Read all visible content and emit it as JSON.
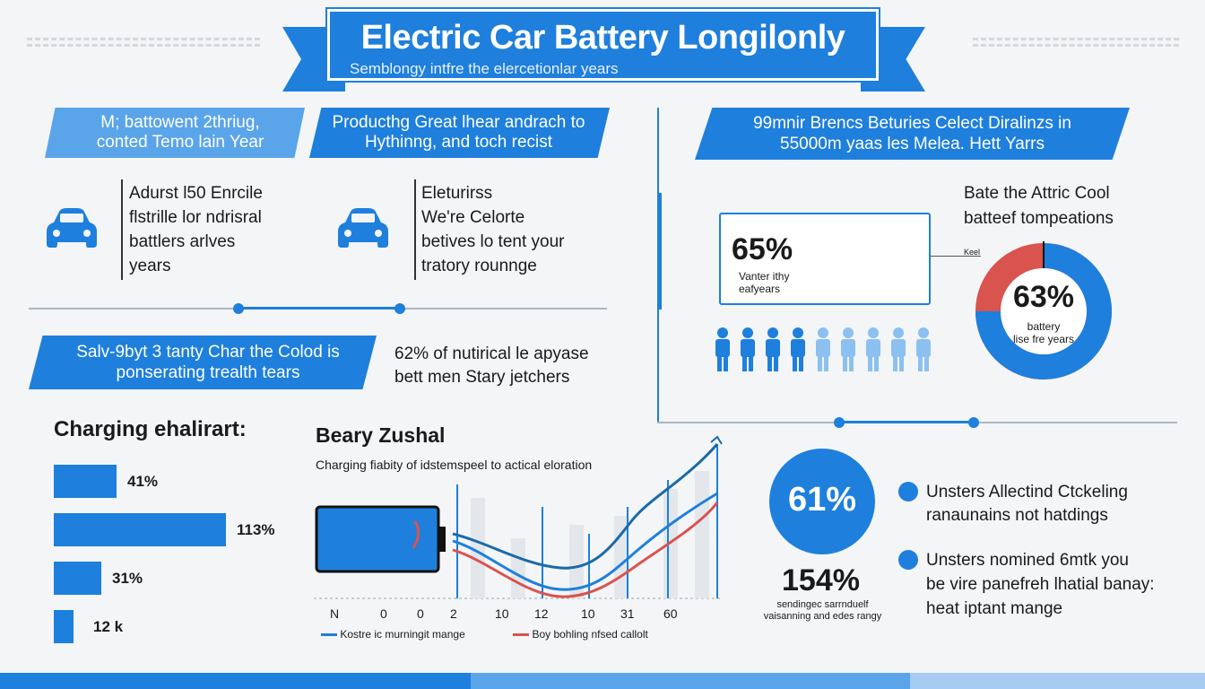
{
  "header": {
    "title": "Electric Car Battery Longilonly",
    "subtitle": "Semblongy intfre the elercetionlar years"
  },
  "left_top": {
    "tag1": "M; battowent 2thriug, conted Temo lain Year",
    "tag2": "Producthg Great lhear andrach to Hythinng, and toch recist",
    "col1_text": [
      "Adurst l50 Enrcile",
      "flstrille lor ndrisral",
      "battlers arlves",
      "years"
    ],
    "col2_text": [
      "Eleturirss",
      "We're Celorte",
      "betives lo tent your",
      "tratory rounnge"
    ]
  },
  "left_mid": {
    "banner": "Salv-9byt 3 tanty Char the Colod is ponserating trealth tears",
    "text_line1": "62% of nutirical le apyase",
    "text_line2": "bett men Stary jetchers"
  },
  "charging_chart": {
    "title": "Charging ehalirart:",
    "bars": [
      {
        "label": "41%",
        "value": 41
      },
      {
        "label": "113%",
        "value": 113
      },
      {
        "label": "31%",
        "value": 31
      },
      {
        "label": "12 k",
        "value": 12
      }
    ]
  },
  "line_chart": {
    "title": "Beary Zushal",
    "subtitle": "Charging fiabity of idstemspeel to actical eloration",
    "x_labels": [
      "N",
      "0",
      "0",
      "2",
      "10",
      "12",
      "10",
      "31",
      "60"
    ],
    "legend": [
      "Kostre ic murningit mange",
      "Boy bohling nfsed callolt"
    ],
    "colors": {
      "series1": "#1e7fdc",
      "series2": "#1a6aa8",
      "series3": "#d9534f"
    }
  },
  "right_top": {
    "banner": "99mnir Brencs Beturies Celect Diralinzs in 55000m yaas les Melea. Hett Yarrs",
    "box_value": "65%",
    "box_caption": [
      "Vanter ithy",
      "eafyears"
    ],
    "donut_heading": [
      "Bate the Attric Cool",
      "batteef tompeations"
    ],
    "donut_small_label": "Keel",
    "donut_value": "63%",
    "donut_caption": [
      "battery",
      "lise fre years"
    ],
    "donut_percent": 63,
    "people_total": 9,
    "people_dark": 4
  },
  "right_bottom": {
    "circle_value": "61%",
    "big_value": "154%",
    "big_caption": [
      "sendingec sarrnduelf",
      "vaisanning and edes rangy"
    ],
    "bullet1": [
      "Unsters Allectind Ctckeling",
      "ranaunains not hatdings"
    ],
    "bullet2": [
      "Unsters nomined 6mtk you",
      "be vire panefreh lhatial banay:",
      "heat iptant mange"
    ]
  }
}
